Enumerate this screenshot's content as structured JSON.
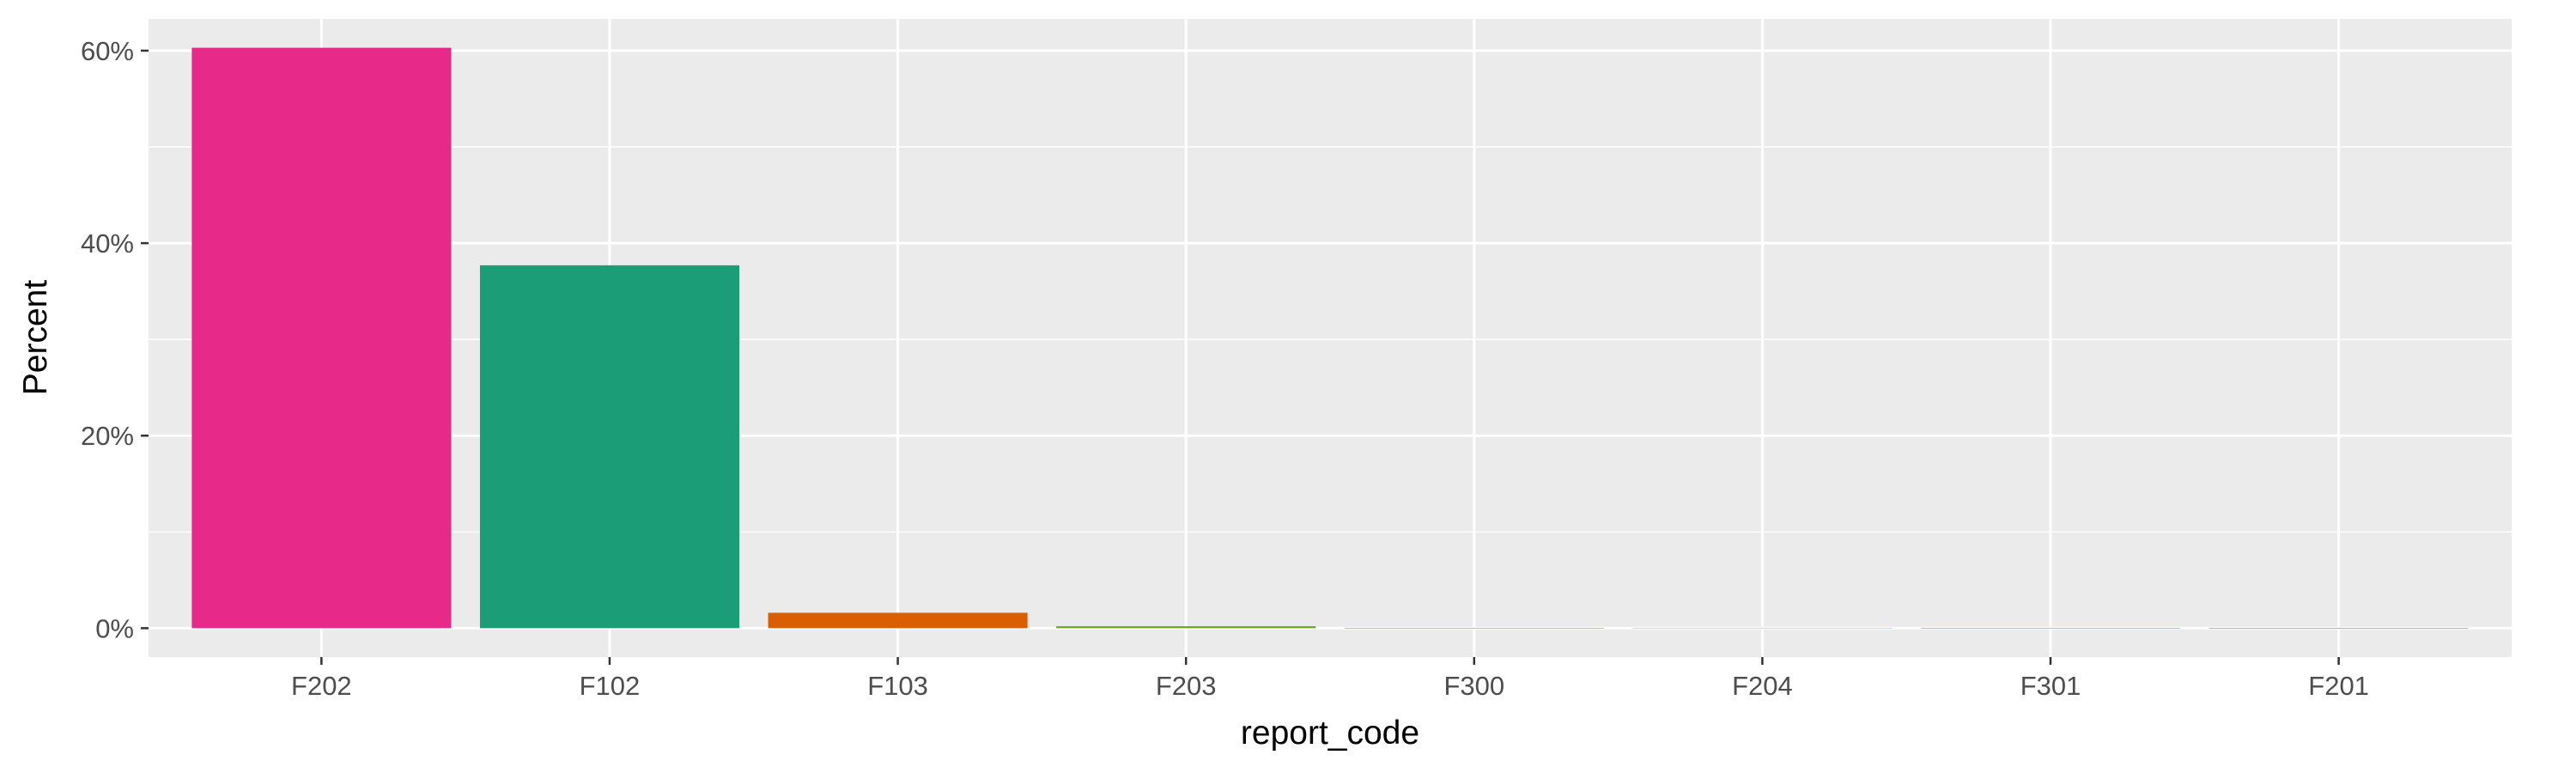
{
  "chart_data": {
    "type": "bar",
    "title": "",
    "xlabel": "report_code",
    "ylabel": "Percent",
    "categories": [
      "F202",
      "F102",
      "F103",
      "F203",
      "F300",
      "F204",
      "F301",
      "F201"
    ],
    "values": [
      60.3,
      37.7,
      1.6,
      0.2,
      0.03,
      0.02,
      0.01,
      0.01
    ],
    "colors": [
      "#E7298A",
      "#1B9E77",
      "#D95F02",
      "#66A61E",
      "#7570B3",
      "#E6AB02",
      "#A6761D",
      "#666666"
    ],
    "ylim": [
      -3.0,
      63.3
    ],
    "y_ticks": [
      0,
      20,
      40,
      60
    ],
    "y_tick_labels": [
      "0%",
      "20%",
      "40%",
      "60%"
    ],
    "grid": true,
    "panel_background": "#EBEBEB",
    "legend": "none"
  }
}
